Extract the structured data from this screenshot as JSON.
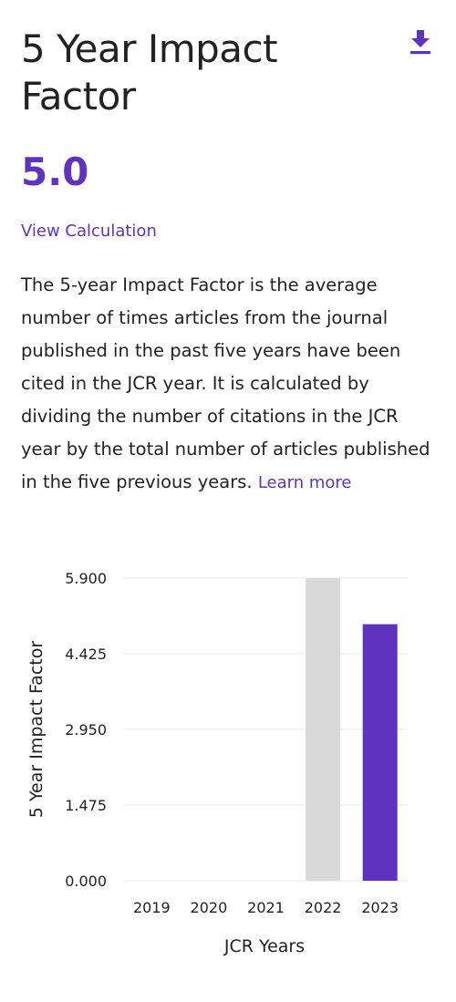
{
  "header": {
    "title": "5 Year Impact Factor"
  },
  "icons": {
    "download": "download-icon"
  },
  "metric": {
    "value": "5.0"
  },
  "links": {
    "view_calculation": "View Calculation",
    "learn_more": "Learn more"
  },
  "description": {
    "text": "The 5-year Impact Factor is the average number of times articles from the journal published in the past five years have been cited in the JCR year. It is calculated by dividing the number of citations in the JCR year by the total number of articles published in the five previous years."
  },
  "colors": {
    "accent": "#5e33bf",
    "previous_bar": "#d9d9d9",
    "text": "#222222",
    "grid": "#eeeeee"
  },
  "chart_data": {
    "type": "bar",
    "categories": [
      "2019",
      "2020",
      "2021",
      "2022",
      "2023"
    ],
    "values": [
      null,
      null,
      null,
      5.9,
      5.0
    ],
    "bar_colors": [
      null,
      null,
      null,
      "#d9d9d9",
      "#5e33bf"
    ],
    "yticks": [
      "0.000",
      "1.475",
      "2.950",
      "4.425",
      "5.900"
    ],
    "ylim": [
      0,
      5.9
    ],
    "xlabel": "JCR Years",
    "ylabel": "5 Year Impact Factor",
    "grid": true,
    "legend": "none"
  }
}
